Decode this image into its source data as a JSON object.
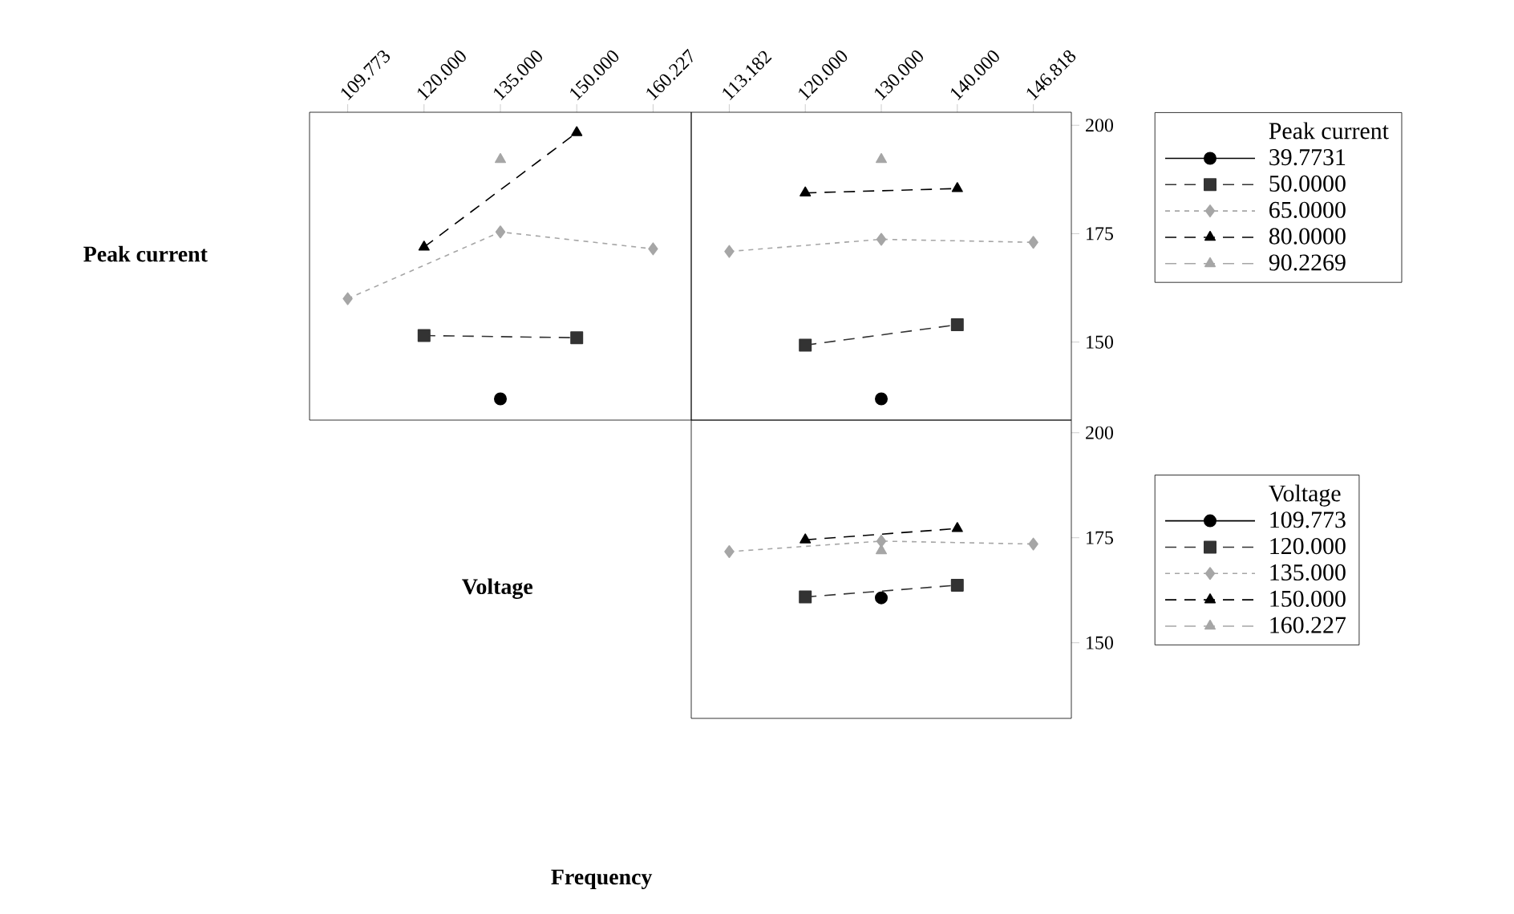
{
  "chart_data": [
    {
      "type": "line",
      "ylabel": "Peak current",
      "categories": [
        "109.773",
        "120.000",
        "135.000",
        "150.000",
        "160.227"
      ],
      "ylim": [
        132,
        203
      ],
      "tick_labels": "x",
      "series": [
        {
          "color": "#000000",
          "marker": "circle",
          "line_style": "solid",
          "values": [
            null,
            null,
            136.9,
            null,
            null
          ]
        },
        {
          "color": "#333333",
          "marker": "square",
          "line_style": "dashed",
          "values": [
            null,
            151.5,
            null,
            151.0,
            null
          ]
        },
        {
          "color": "#a6a6a6",
          "marker": "diamond",
          "line_style": "dotted",
          "values": [
            160.0,
            null,
            175.4,
            null,
            171.5
          ]
        },
        {
          "color": "#000000",
          "marker": "triangle",
          "line_style": "dashed",
          "values": [
            null,
            171.9,
            null,
            198.3,
            null
          ]
        },
        {
          "color": "#a6a6a6",
          "marker": "triangle",
          "line_style": "dashed",
          "values": [
            null,
            null,
            192.1,
            null,
            null
          ]
        }
      ]
    },
    {
      "type": "line",
      "legend_title": "Peak current",
      "legend": "right",
      "categories": [
        "113.182",
        "120.000",
        "130.000",
        "140.000",
        "146.818"
      ],
      "ylim": [
        132,
        203
      ],
      "yticks": [
        150,
        175,
        200
      ],
      "series": [
        {
          "name": "39.7731",
          "color": "#000000",
          "marker": "circle",
          "line_style": "solid",
          "values": [
            null,
            null,
            136.9,
            null,
            null
          ]
        },
        {
          "name": "50.0000",
          "color": "#333333",
          "marker": "square",
          "line_style": "dashed",
          "values": [
            null,
            149.3,
            null,
            154.0,
            null
          ]
        },
        {
          "name": "65.0000",
          "color": "#a6a6a6",
          "marker": "diamond",
          "line_style": "dotted",
          "values": [
            170.9,
            null,
            173.7,
            null,
            173.0
          ]
        },
        {
          "name": "80.0000",
          "color": "#000000",
          "marker": "triangle",
          "line_style": "dashed",
          "values": [
            null,
            184.4,
            null,
            185.4,
            null
          ]
        },
        {
          "name": "90.2269",
          "color": "#a6a6a6",
          "marker": "triangle",
          "line_style": "dashed",
          "values": [
            null,
            null,
            192.1,
            null,
            null
          ]
        }
      ]
    },
    {
      "type": "line",
      "ylabel": "Voltage",
      "xlabel": "Frequency",
      "legend_title": "Voltage",
      "legend": "right",
      "categories": [
        "113.182",
        "120.000",
        "130.000",
        "140.000",
        "146.818"
      ],
      "ylim": [
        132,
        203
      ],
      "yticks": [
        150,
        175,
        200
      ],
      "tick_labels": "y",
      "series": [
        {
          "name": "109.773",
          "color": "#000000",
          "marker": "circle",
          "line_style": "solid",
          "values": [
            null,
            null,
            160.7,
            null,
            null
          ]
        },
        {
          "name": "120.000",
          "color": "#333333",
          "marker": "square",
          "line_style": "dashed",
          "values": [
            null,
            160.9,
            null,
            163.7,
            null
          ]
        },
        {
          "name": "135.000",
          "color": "#a6a6a6",
          "marker": "diamond",
          "line_style": "dotted",
          "values": [
            171.7,
            null,
            174.2,
            null,
            173.5
          ]
        },
        {
          "name": "150.000",
          "color": "#000000",
          "marker": "triangle",
          "line_style": "dashed",
          "values": [
            null,
            174.5,
            null,
            177.2,
            null
          ]
        },
        {
          "name": "160.227",
          "color": "#a6a6a6",
          "marker": "triangle",
          "line_style": "dashed",
          "values": [
            null,
            null,
            171.9,
            null,
            null
          ]
        }
      ]
    }
  ]
}
